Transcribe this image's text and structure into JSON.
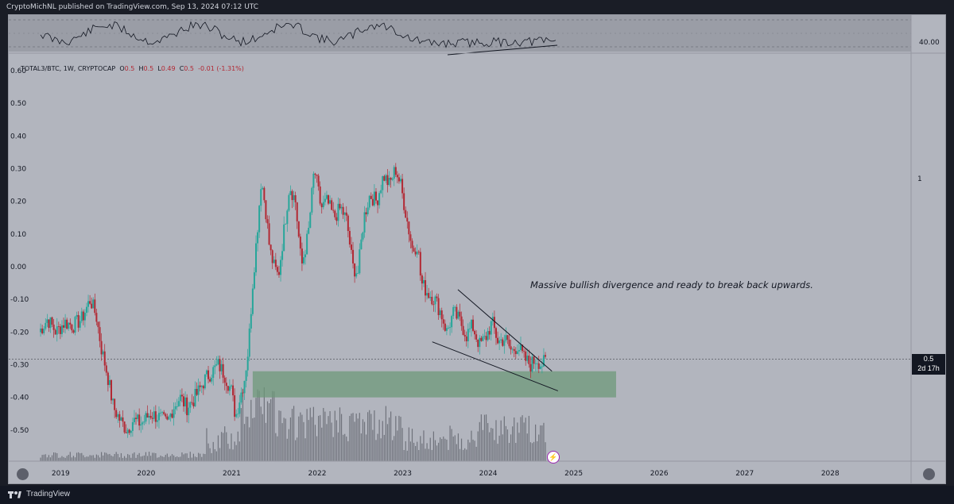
{
  "header": {
    "text": "CryptoMichNL published on TradingView.com, Sep 13, 2024 07:12 UTC"
  },
  "legend": {
    "symbol": "TOTAL3/BTC, 1W, CRYPTOCAP",
    "open_label": "O",
    "open": "0.5",
    "high_label": "H",
    "high": "0.5",
    "low_label": "L",
    "low": "0.49",
    "close_label": "C",
    "close": "0.5",
    "change": "-0.01 (-1.31%)"
  },
  "annotation": "Massive bullish divergence and ready to break back upwards.",
  "rsi_panel": {
    "level_label": "40.00"
  },
  "right_scale": {
    "label": "1"
  },
  "price_tag": {
    "value": "0.5",
    "countdown": "2d 17h"
  },
  "footer": {
    "brand": "TradingView"
  },
  "colors": {
    "up": "#26a69a",
    "down": "#b22833",
    "zone": "#6e9a7a",
    "panel_bg": "#b2b5be"
  },
  "icons": [
    "tradingview-logo-icon",
    "lightning-icon"
  ],
  "chart_data": {
    "type": "candlestick",
    "title": "",
    "ylim": [
      -0.6,
      0.6
    ],
    "yticks": [
      "0.60",
      "0.50",
      "0.40",
      "0.30",
      "0.20",
      "0.10",
      "0.00",
      "-0.10",
      "-0.20",
      "-0.30",
      "-0.40",
      "-0.50"
    ],
    "xticks": [
      "2019",
      "2020",
      "2021",
      "2022",
      "2023",
      "2024",
      "2025",
      "2026",
      "2027",
      "2028"
    ],
    "xrange": [
      2018.75,
      2028.95
    ],
    "support_zone": {
      "x": [
        2021.25,
        2025.5
      ],
      "y": [
        -0.32,
        -0.4
      ]
    },
    "wedge_upper": {
      "x": [
        2023.65,
        2024.75
      ],
      "y": [
        -0.07,
        -0.32
      ]
    },
    "wedge_lower": {
      "x": [
        2023.35,
        2024.82
      ],
      "y": [
        -0.23,
        -0.38
      ]
    },
    "price_line": -0.283,
    "series": [
      {
        "values": [
          [
            2018.75,
            -0.2
          ],
          [
            2018.85,
            -0.16
          ],
          [
            2018.95,
            -0.2
          ],
          [
            2019.05,
            -0.17
          ],
          [
            2019.15,
            -0.18
          ],
          [
            2019.25,
            -0.16
          ],
          [
            2019.35,
            -0.1
          ],
          [
            2019.42,
            -0.15
          ],
          [
            2019.48,
            -0.25
          ],
          [
            2019.55,
            -0.33
          ],
          [
            2019.62,
            -0.43
          ],
          [
            2019.7,
            -0.47
          ],
          [
            2019.78,
            -0.5
          ],
          [
            2019.85,
            -0.47
          ],
          [
            2019.95,
            -0.48
          ],
          [
            2020.05,
            -0.45
          ],
          [
            2020.15,
            -0.46
          ],
          [
            2020.25,
            -0.48
          ],
          [
            2020.32,
            -0.43
          ],
          [
            2020.4,
            -0.4
          ],
          [
            2020.48,
            -0.43
          ],
          [
            2020.55,
            -0.41
          ],
          [
            2020.62,
            -0.38
          ],
          [
            2020.7,
            -0.34
          ],
          [
            2020.78,
            -0.32
          ],
          [
            2020.85,
            -0.3
          ],
          [
            2020.92,
            -0.33
          ],
          [
            2021.0,
            -0.38
          ],
          [
            2021.05,
            -0.46
          ],
          [
            2021.1,
            -0.4
          ],
          [
            2021.15,
            -0.35
          ],
          [
            2021.2,
            -0.25
          ],
          [
            2021.25,
            -0.05
          ],
          [
            2021.3,
            0.1
          ],
          [
            2021.35,
            0.27
          ],
          [
            2021.4,
            0.18
          ],
          [
            2021.45,
            0.05
          ],
          [
            2021.5,
            0.0
          ],
          [
            2021.55,
            -0.03
          ],
          [
            2021.62,
            0.12
          ],
          [
            2021.68,
            0.25
          ],
          [
            2021.75,
            0.2
          ],
          [
            2021.82,
            0.0
          ],
          [
            2021.9,
            0.1
          ],
          [
            2021.97,
            0.3
          ],
          [
            2022.05,
            0.18
          ],
          [
            2022.12,
            0.2
          ],
          [
            2022.2,
            0.15
          ],
          [
            2022.28,
            0.18
          ],
          [
            2022.35,
            0.14
          ],
          [
            2022.42,
            0.0
          ],
          [
            2022.48,
            -0.02
          ],
          [
            2022.55,
            0.15
          ],
          [
            2022.62,
            0.22
          ],
          [
            2022.7,
            0.2
          ],
          [
            2022.78,
            0.28
          ],
          [
            2022.85,
            0.25
          ],
          [
            2022.92,
            0.3
          ],
          [
            2022.98,
            0.25
          ],
          [
            2023.05,
            0.15
          ],
          [
            2023.12,
            0.05
          ],
          [
            2023.18,
            0.07
          ],
          [
            2023.22,
            -0.05
          ],
          [
            2023.3,
            -0.08
          ],
          [
            2023.38,
            -0.1
          ],
          [
            2023.45,
            -0.14
          ],
          [
            2023.52,
            -0.2
          ],
          [
            2023.6,
            -0.14
          ],
          [
            2023.68,
            -0.17
          ],
          [
            2023.75,
            -0.21
          ],
          [
            2023.82,
            -0.18
          ],
          [
            2023.9,
            -0.24
          ],
          [
            2023.97,
            -0.22
          ],
          [
            2024.05,
            -0.17
          ],
          [
            2024.12,
            -0.23
          ],
          [
            2024.2,
            -0.22
          ],
          [
            2024.28,
            -0.26
          ],
          [
            2024.35,
            -0.24
          ],
          [
            2024.42,
            -0.28
          ],
          [
            2024.5,
            -0.3
          ],
          [
            2024.57,
            -0.28
          ],
          [
            2024.62,
            -0.3
          ],
          [
            2024.68,
            -0.29
          ]
        ]
      }
    ]
  }
}
